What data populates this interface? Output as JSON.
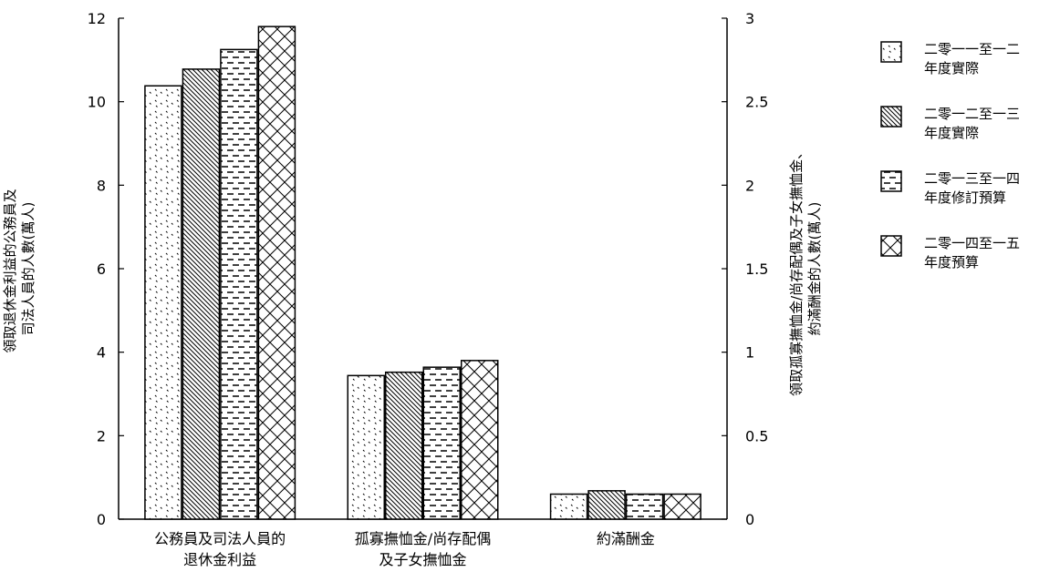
{
  "chart_data": {
    "type": "bar",
    "categories": [
      [
        "公務員及司法人員的",
        "退休金利益"
      ],
      [
        "孤寡撫恤金/尚存配偶",
        "及子女撫恤金"
      ],
      [
        "約滿酬金"
      ]
    ],
    "left_axis": {
      "label_lines": [
        "領取退休金利益的公務員及",
        "司法人員的人數(萬人)"
      ],
      "ylim": [
        0,
        12
      ],
      "ticks": [
        0,
        2,
        4,
        6,
        8,
        10,
        12
      ],
      "tick_labels": [
        "0",
        "2",
        "4",
        "6",
        "8",
        "10",
        "12"
      ]
    },
    "right_axis": {
      "label_lines": [
        "領取孤寡撫恤金/尚存配偶及子女撫恤金、",
        "約滿酬金的人數(萬人)"
      ],
      "ylim": [
        0,
        3
      ],
      "ticks": [
        0,
        0.5,
        1,
        1.5,
        2,
        2.5,
        3
      ],
      "tick_labels": [
        "0",
        "0.5",
        "1",
        "1.5",
        "2",
        "2.5",
        "3"
      ]
    },
    "series": [
      {
        "name": "二零一一至一二年度實際",
        "legend_lines": [
          "二零一一至一二",
          "年度實際"
        ],
        "pattern": "dots",
        "values": [
          10.38,
          0.86,
          0.15
        ]
      },
      {
        "name": "二零一二至一三年度實際",
        "legend_lines": [
          "二零一二至一三",
          "年度實際"
        ],
        "pattern": "diagonal",
        "values": [
          10.78,
          0.88,
          0.17
        ]
      },
      {
        "name": "二零一三至一四年度修訂預算",
        "legend_lines": [
          "二零一三至一四",
          "年度修訂預算"
        ],
        "pattern": "dashes",
        "values": [
          11.25,
          0.91,
          0.15
        ]
      },
      {
        "name": "二零一四至一五年度預算",
        "legend_lines": [
          "二零一四至一五",
          "年度預算"
        ],
        "pattern": "crosshatch",
        "values": [
          11.8,
          0.95,
          0.15
        ]
      }
    ],
    "category_axis_map": [
      "left",
      "right",
      "right"
    ],
    "grid": false,
    "legend_position": "right"
  }
}
